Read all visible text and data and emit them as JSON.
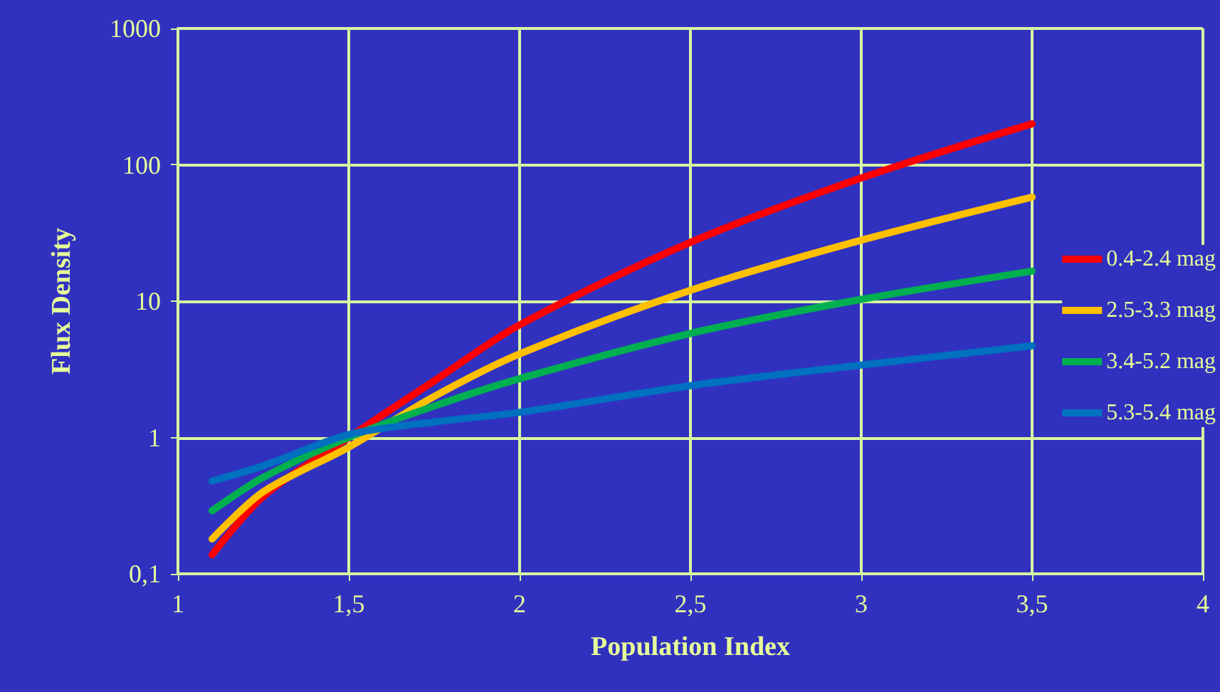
{
  "chart_data": {
    "type": "line",
    "xlabel": "Population Index",
    "ylabel": "Flux Density",
    "log": "y",
    "grid": true,
    "legend": "right",
    "marker": "none",
    "line_style": "solid",
    "xlim": [
      1,
      4
    ],
    "xticks": [
      1,
      {
        "value": 1.5,
        "label": "1,5"
      },
      2,
      {
        "value": 2.5,
        "label": "2,5"
      },
      3,
      {
        "value": 3.5,
        "label": "3,5"
      },
      4
    ],
    "ylim": [
      0.1,
      1000
    ],
    "yticks": [
      {
        "value": 0.1,
        "label": "0,1"
      },
      1,
      10,
      100,
      1000
    ],
    "x": [
      1.1,
      1.25,
      1.5,
      1.75,
      2,
      2.5,
      3,
      3.5
    ],
    "series": [
      {
        "name": "0.4-2.4 mag",
        "color": "#ff0000",
        "values": [
          0.138,
          0.37,
          1.0,
          2.6,
          6.7,
          27,
          80,
          200
        ]
      },
      {
        "name": "2.5-3.3 mag",
        "color": "#ffc000",
        "values": [
          0.18,
          0.4,
          0.85,
          2.0,
          4.1,
          12,
          28,
          58
        ]
      },
      {
        "name": "3.4-5.2 mag",
        "color": "#00b050",
        "values": [
          0.29,
          0.51,
          1.0,
          1.7,
          2.7,
          5.8,
          10.3,
          16.6
        ]
      },
      {
        "name": "5.3-5.4 mag",
        "color": "#0070c0",
        "values": [
          0.48,
          0.62,
          1.05,
          1.3,
          1.53,
          2.4,
          3.4,
          4.7
        ]
      }
    ]
  }
}
